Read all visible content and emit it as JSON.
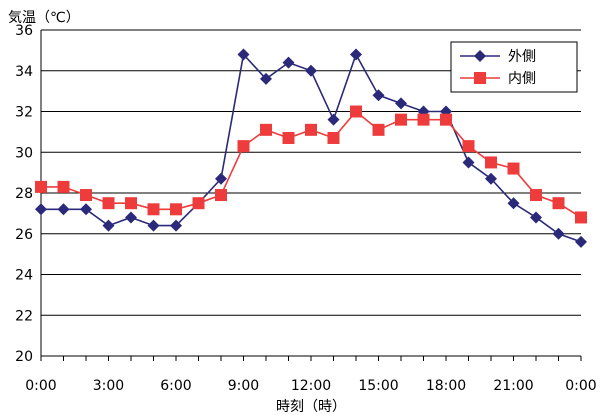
{
  "chart_data": {
    "type": "line",
    "ylabel": "気温（℃）",
    "xlabel": "時刻（時）",
    "ylim": [
      20,
      36
    ],
    "yticks": [
      "20",
      "22",
      "24",
      "26",
      "28",
      "30",
      "32",
      "34",
      "36"
    ],
    "xtick_labels": [
      "0:00",
      "3:00",
      "6:00",
      "9:00",
      "12:00",
      "15:00",
      "18:00",
      "21:00",
      "0:00"
    ],
    "x_hours": [
      0,
      1,
      2,
      3,
      4,
      5,
      6,
      7,
      8,
      9,
      10,
      11,
      12,
      13,
      14,
      15,
      16,
      17,
      18,
      19,
      20,
      21,
      22,
      23,
      24
    ],
    "grid": "horizontal",
    "legend_position": "top-right",
    "series": [
      {
        "name": "外側",
        "marker": "diamond",
        "color": "#2b2a7a",
        "values": [
          27.2,
          27.2,
          27.2,
          26.4,
          26.8,
          26.4,
          26.4,
          27.5,
          28.7,
          34.8,
          33.6,
          34.4,
          34.0,
          31.6,
          34.8,
          32.8,
          32.4,
          32.0,
          32.0,
          29.5,
          28.7,
          27.5,
          26.8,
          26.0,
          25.6
        ]
      },
      {
        "name": "内側",
        "marker": "square",
        "color": "#ee3c3c",
        "values": [
          28.3,
          28.3,
          27.9,
          27.5,
          27.5,
          27.2,
          27.2,
          27.5,
          27.9,
          30.3,
          31.1,
          30.7,
          31.1,
          30.7,
          32.0,
          31.1,
          31.6,
          31.6,
          31.6,
          30.3,
          29.5,
          29.2,
          27.9,
          27.5,
          26.8
        ]
      }
    ]
  }
}
